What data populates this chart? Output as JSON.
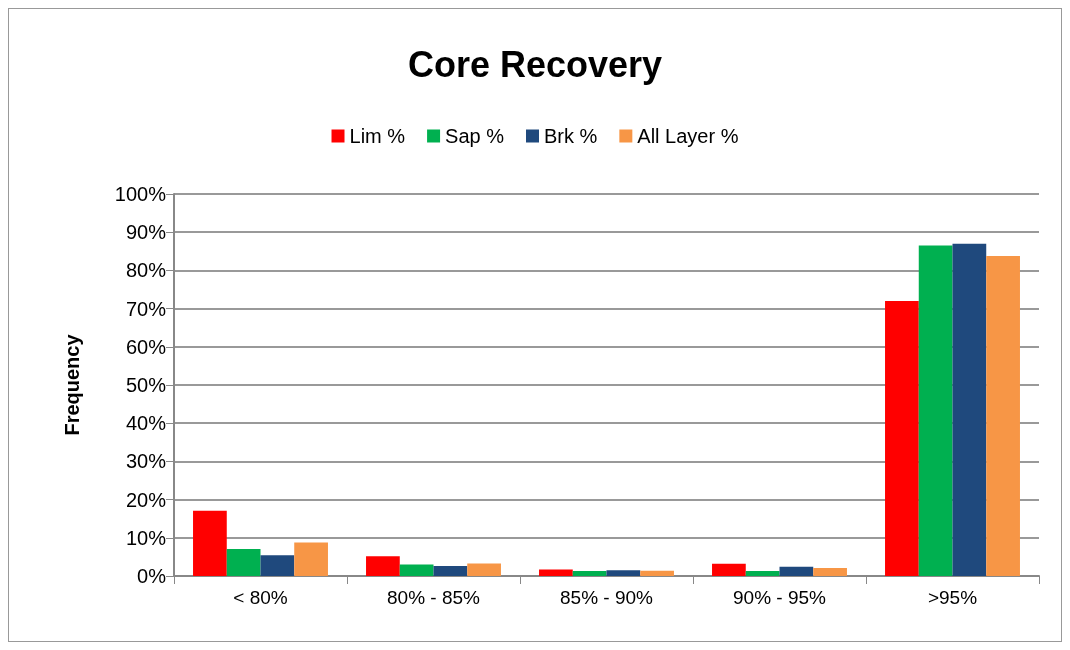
{
  "chart_data": {
    "type": "bar",
    "title": "Core Recovery",
    "ylabel": "Frequency",
    "categories": [
      "< 80%",
      "80% - 85%",
      "85% - 90%",
      "90% - 95%",
      ">95%"
    ],
    "series": [
      {
        "name": "Lim %",
        "color": "#ff0000",
        "values": [
          17.1,
          5.2,
          1.7,
          3.2,
          72
        ]
      },
      {
        "name": "Sap %",
        "color": "#00b050",
        "values": [
          7.1,
          3.0,
          1.3,
          1.3,
          86.5
        ]
      },
      {
        "name": "Brk %",
        "color": "#1f497d",
        "values": [
          5.4,
          2.6,
          1.5,
          2.4,
          87
        ]
      },
      {
        "name": "All Layer %",
        "color": "#f79646",
        "values": [
          8.8,
          3.3,
          1.4,
          2.1,
          83.8
        ]
      }
    ],
    "ylim": [
      0,
      100
    ],
    "yticks": [
      {
        "value": 0,
        "label": "0%"
      },
      {
        "value": 10,
        "label": "10%"
      },
      {
        "value": 20,
        "label": "20%"
      },
      {
        "value": 30,
        "label": "30%"
      },
      {
        "value": 40,
        "label": "40%"
      },
      {
        "value": 50,
        "label": "50%"
      },
      {
        "value": 60,
        "label": "60%"
      },
      {
        "value": 70,
        "label": "70%"
      },
      {
        "value": 80,
        "label": "80%"
      },
      {
        "value": 90,
        "label": "90%"
      },
      {
        "value": 100,
        "label": "100%"
      }
    ],
    "grid": "y",
    "legend": "top"
  }
}
